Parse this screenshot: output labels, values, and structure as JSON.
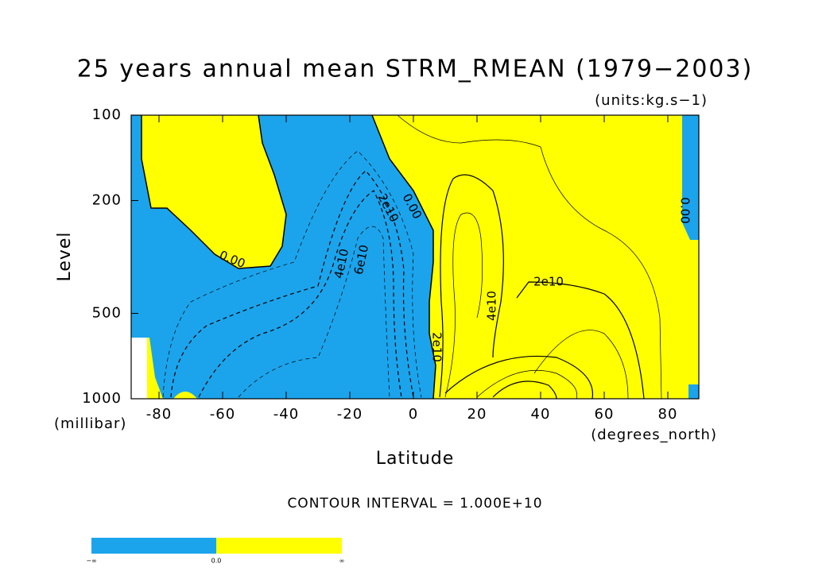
{
  "chart_data": {
    "type": "contour",
    "title": "25 years annual mean STRM_RMEAN  (1979−2003)",
    "subtitle": "(units:kg.s−1)",
    "y_label": "Level",
    "y_unit": "(millibar)",
    "x_label": "Latitude",
    "x_unit": "(degrees_north)",
    "note": "CONTOUR INTERVAL = 1.000E+10",
    "xlim": [
      -90,
      90
    ],
    "xticks": [
      -80,
      -60,
      -40,
      -20,
      0,
      20,
      40,
      60,
      80
    ],
    "ylim": [
      1000,
      100
    ],
    "yticks": [
      100,
      200,
      500,
      1000
    ],
    "y_log": true,
    "contour_labels": [
      "0.00",
      "2e10",
      "4e10",
      "6e10",
      "0.00",
      "0.00",
      "2e10",
      "4e10",
      "2e10"
    ],
    "colors": {
      "negative": "#1ba4ec",
      "positive": "#ffff00"
    },
    "colorbar_labels": [
      "−∞",
      "0.0",
      "∞"
    ]
  }
}
